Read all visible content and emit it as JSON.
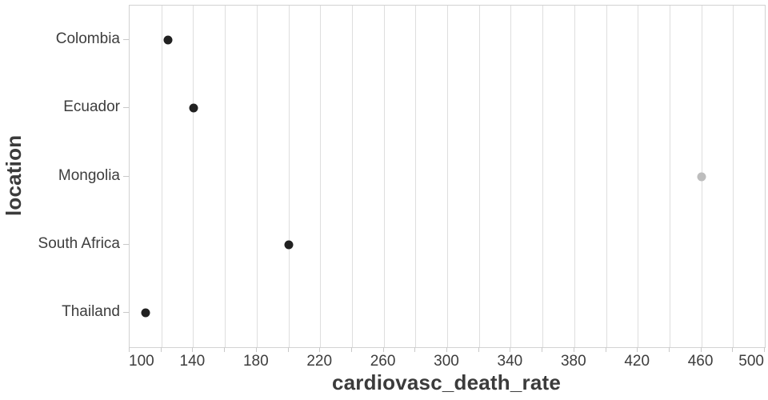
{
  "chart_data": {
    "type": "scatter",
    "subtype": "categorical-dot-plot",
    "title": "",
    "xlabel": "cardiovasc_death_rate",
    "ylabel": "location",
    "categories": [
      "Colombia",
      "Ecuador",
      "Mongolia",
      "South Africa",
      "Thailand"
    ],
    "points": [
      {
        "location": "Colombia",
        "value": 124.2,
        "color": "#212121"
      },
      {
        "location": "Ecuador",
        "value": 140.4,
        "color": "#212121"
      },
      {
        "location": "Mongolia",
        "value": 460.0,
        "color": "#bdbdbd"
      },
      {
        "location": "South Africa",
        "value": 200.4,
        "color": "#212121"
      },
      {
        "location": "Thailand",
        "value": 109.9,
        "color": "#212121"
      }
    ],
    "x_axis": {
      "min": 100,
      "max": 500,
      "minor_tick_step": 20,
      "label_step": 40,
      "tick_labels": [
        "100",
        "140",
        "180",
        "220",
        "260",
        "300",
        "340",
        "380",
        "420",
        "460",
        "500"
      ]
    },
    "grid": "vertical-only",
    "legend": "none"
  },
  "style": {
    "background": "#ffffff",
    "grid_color": "#dedede",
    "border_color": "#d2d2d2",
    "tick_color": "#c9c9c9",
    "tick_label_color": "#3d3d3d",
    "axis_title_color": "#3b3b3b",
    "point_default_color": "#212121",
    "point_muted_color": "#bdbdbd"
  }
}
